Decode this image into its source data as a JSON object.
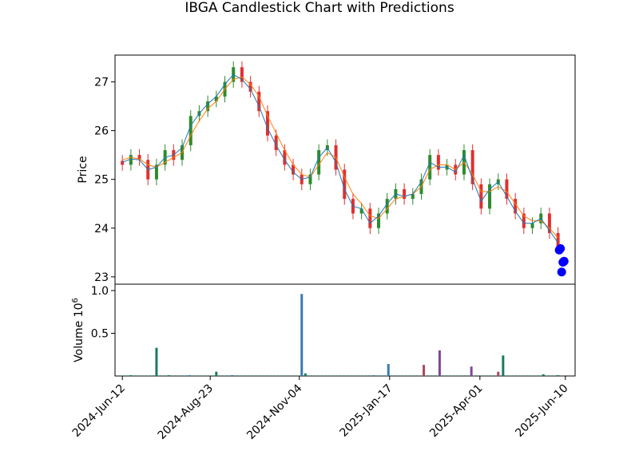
{
  "title": "IBGA Candlestick Chart with Predictions",
  "chart_data": [
    {
      "type": "candlestick",
      "title": "IBGA Candlestick Chart with Predictions",
      "ylabel": "Price",
      "ylim": [
        22.85,
        27.55
      ],
      "yticks": [
        23,
        24,
        25,
        26,
        27
      ],
      "grid": false,
      "x_range": [
        "2024-06-06",
        "2025-06-18"
      ],
      "dates": [
        "2024-06-12",
        "2024-06-19",
        "2024-06-26",
        "2024-07-03",
        "2024-07-10",
        "2024-07-17",
        "2024-07-24",
        "2024-07-31",
        "2024-08-07",
        "2024-08-14",
        "2024-08-21",
        "2024-08-28",
        "2024-09-04",
        "2024-09-11",
        "2024-09-18",
        "2024-09-25",
        "2024-10-02",
        "2024-10-09",
        "2024-10-16",
        "2024-10-23",
        "2024-10-30",
        "2024-11-06",
        "2024-11-13",
        "2024-11-20",
        "2024-11-27",
        "2024-12-04",
        "2024-12-11",
        "2024-12-18",
        "2024-12-25",
        "2025-01-01",
        "2025-01-08",
        "2025-01-15",
        "2025-01-22",
        "2025-01-29",
        "2025-02-05",
        "2025-02-12",
        "2025-02-19",
        "2025-02-26",
        "2025-03-05",
        "2025-03-12",
        "2025-03-19",
        "2025-03-26",
        "2025-04-02",
        "2025-04-09",
        "2025-04-16",
        "2025-04-23",
        "2025-04-30",
        "2025-05-07",
        "2025-05-14",
        "2025-05-21",
        "2025-05-28",
        "2025-06-04"
      ],
      "close": [
        25.3,
        25.5,
        25.4,
        25.0,
        25.3,
        25.6,
        25.4,
        25.7,
        26.3,
        26.4,
        26.6,
        26.7,
        27.0,
        27.3,
        27.0,
        26.8,
        26.4,
        25.9,
        25.6,
        25.3,
        25.1,
        24.9,
        25.1,
        25.6,
        25.7,
        25.2,
        24.6,
        24.3,
        24.4,
        24.0,
        24.3,
        24.6,
        24.8,
        24.6,
        24.7,
        25.0,
        25.5,
        25.2,
        25.3,
        25.1,
        25.6,
        24.9,
        24.4,
        24.9,
        25.0,
        24.6,
        24.3,
        24.0,
        24.1,
        24.3,
        23.9,
        23.6
      ],
      "sma_short": [
        25.35,
        25.42,
        25.4,
        25.2,
        25.25,
        25.45,
        25.5,
        25.65,
        26.1,
        26.35,
        26.55,
        26.7,
        26.95,
        27.15,
        27.05,
        26.85,
        26.5,
        26.05,
        25.7,
        25.4,
        25.15,
        25.0,
        25.05,
        25.45,
        25.65,
        25.35,
        24.8,
        24.45,
        24.4,
        24.1,
        24.25,
        24.5,
        24.7,
        24.65,
        24.7,
        24.95,
        25.35,
        25.25,
        25.25,
        25.15,
        25.5,
        25.0,
        24.55,
        24.8,
        24.95,
        24.65,
        24.35,
        24.1,
        24.1,
        24.2,
        23.95,
        23.7
      ],
      "sma_long": [
        25.4,
        25.45,
        25.42,
        25.3,
        25.25,
        25.35,
        25.45,
        25.55,
        25.9,
        26.2,
        26.45,
        26.6,
        26.85,
        27.05,
        27.1,
        26.95,
        26.7,
        26.3,
        25.95,
        25.6,
        25.3,
        25.1,
        25.05,
        25.3,
        25.55,
        25.45,
        25.05,
        24.7,
        24.5,
        24.25,
        24.2,
        24.4,
        24.6,
        24.65,
        24.7,
        24.85,
        25.2,
        25.3,
        25.3,
        25.2,
        25.35,
        25.1,
        24.75,
        24.75,
        24.85,
        24.75,
        24.5,
        24.25,
        24.15,
        24.15,
        24.0,
        23.8
      ],
      "predictions": [
        {
          "date": "2025-06-05",
          "value": 23.55
        },
        {
          "date": "2025-06-06",
          "value": 23.58
        },
        {
          "date": "2025-06-07",
          "value": 23.1
        },
        {
          "date": "2025-06-08",
          "value": 23.3
        },
        {
          "date": "2025-06-09",
          "value": 23.32
        }
      ]
    },
    {
      "type": "bar",
      "ylabel": "Volume",
      "scale_label": "10^6",
      "ylim": [
        0,
        1.0
      ],
      "yticks": [
        0.5,
        1.0
      ],
      "xticks": [
        "2024-Jun-12",
        "2024-Aug-23",
        "2024-Nov-04",
        "2025-Jan-17",
        "2025-Apr-01",
        "2025-Jun-10"
      ],
      "dates": [
        "2024-06-19",
        "2024-07-10",
        "2024-07-20",
        "2024-08-06",
        "2024-08-28",
        "2024-09-10",
        "2024-11-06",
        "2024-11-09",
        "2025-01-04",
        "2025-01-16",
        "2025-02-14",
        "2025-02-27",
        "2025-03-25",
        "2025-04-16",
        "2025-04-20",
        "2025-05-23",
        "2025-06-04"
      ],
      "values": [
        0.01,
        0.33,
        0.01,
        0.01,
        0.05,
        0.01,
        0.96,
        0.03,
        0.01,
        0.14,
        0.13,
        0.3,
        0.11,
        0.05,
        0.24,
        0.02,
        0.01
      ],
      "colors": [
        "#1a7a60",
        "#1a7a60",
        "#1a7a60",
        "#3a7ab0",
        "#1a7a60",
        "#3a7ab0",
        "#3a7ab0",
        "#1a7a60",
        "#3a7ab0",
        "#3a7ab0",
        "#a84a60",
        "#7a4a90",
        "#7a4a90",
        "#a84a60",
        "#1a7a60",
        "#1a7a60",
        "#1a7a60"
      ]
    }
  ],
  "colors": {
    "up": "#2e8b2e",
    "down": "#e03030",
    "sma_short": "#1f77b4",
    "sma_long": "#ff7f0e",
    "prediction": "#0000ff"
  }
}
